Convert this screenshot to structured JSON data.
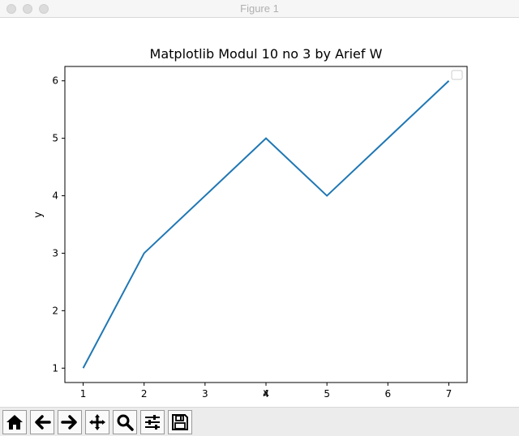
{
  "window": {
    "title": "Figure 1"
  },
  "chart_data": {
    "type": "line",
    "title": "Matplotlib Modul 10 no 3 by Arief W",
    "xlabel": "x",
    "ylabel": "y",
    "x": [
      1,
      2,
      3,
      4,
      5,
      6,
      7
    ],
    "series": [
      {
        "values": [
          1,
          3,
          4,
          5,
          4,
          5,
          6
        ]
      }
    ],
    "xlim": [
      0.7,
      7.3
    ],
    "ylim": [
      0.75,
      6.25
    ],
    "xticks": [
      1,
      2,
      3,
      4,
      5,
      6,
      7
    ],
    "yticks": [
      1,
      2,
      3,
      4,
      5,
      6
    ],
    "line_color": "#1f77b4",
    "grid": false,
    "legend": "top-right (empty)"
  },
  "toolbar": {
    "buttons": [
      "home-icon",
      "back-arrow-icon",
      "forward-arrow-icon",
      "pan-icon",
      "zoom-icon",
      "configure-subplots-icon",
      "save-icon"
    ]
  }
}
